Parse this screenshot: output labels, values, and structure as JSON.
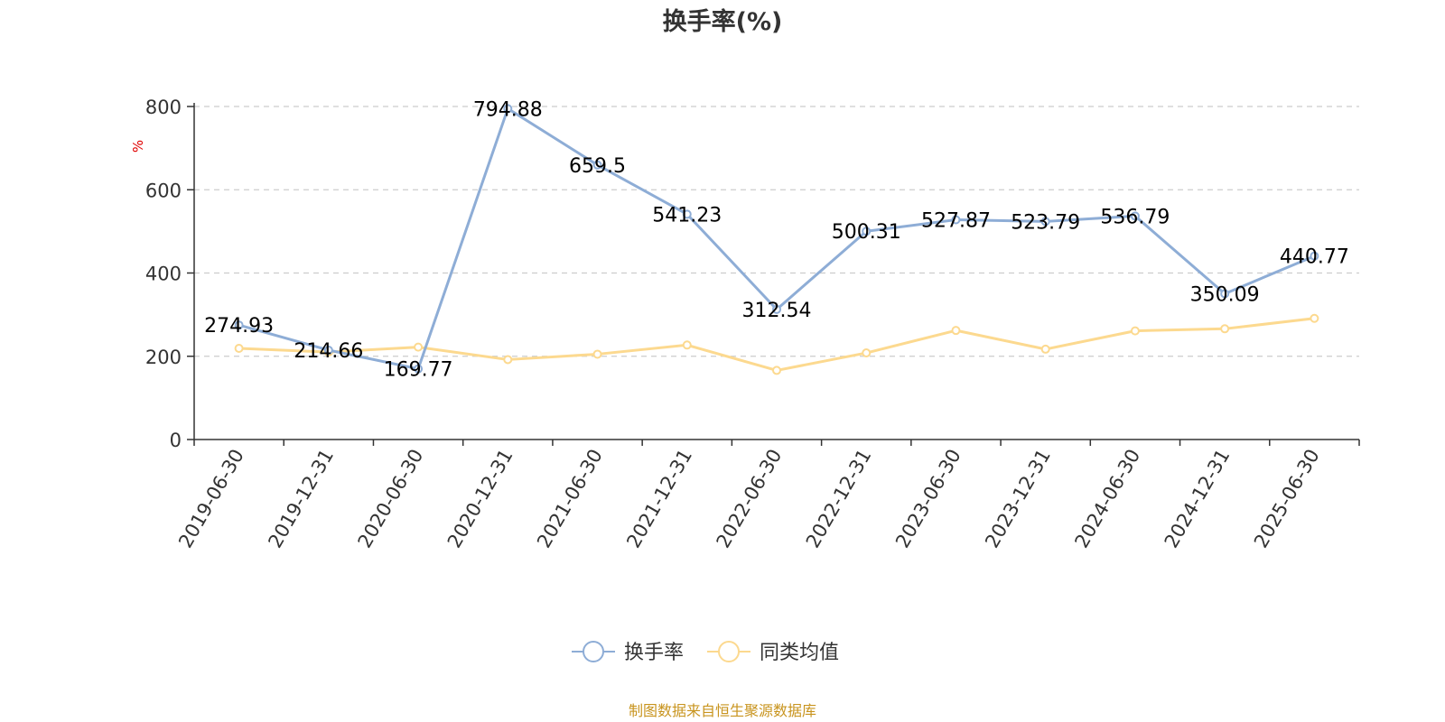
{
  "chart_data": {
    "type": "line",
    "title": "换手率(%)",
    "ylabel": "%",
    "ylim": [
      0,
      800
    ],
    "yticks": [
      0,
      200,
      400,
      600,
      800
    ],
    "categories": [
      "2019-06-30",
      "2019-12-31",
      "2020-06-30",
      "2020-12-31",
      "2021-06-30",
      "2021-12-31",
      "2022-06-30",
      "2022-12-31",
      "2023-06-30",
      "2023-12-31",
      "2024-06-30",
      "2024-12-31",
      "2025-06-30"
    ],
    "series": [
      {
        "name": "换手率",
        "color": "#8eadd6",
        "values": [
          274.93,
          214.66,
          169.77,
          794.88,
          659.5,
          541.23,
          312.54,
          500.31,
          527.87,
          523.79,
          536.79,
          350.09,
          440.77
        ],
        "labels": [
          "274.93",
          "214.66",
          "169.77",
          "794.88",
          "659.5",
          "541.23",
          "312.54",
          "500.31",
          "527.87",
          "523.79",
          "536.79",
          "350.09",
          "440.77"
        ]
      },
      {
        "name": "同类均值",
        "color": "#fcd98f",
        "values": [
          219,
          210,
          222,
          192,
          205,
          227,
          166,
          208,
          262,
          217,
          261,
          266,
          291
        ]
      }
    ],
    "grid": true,
    "legend_position": "bottom-center"
  },
  "source_note": "制图数据来自恒生聚源数据库"
}
